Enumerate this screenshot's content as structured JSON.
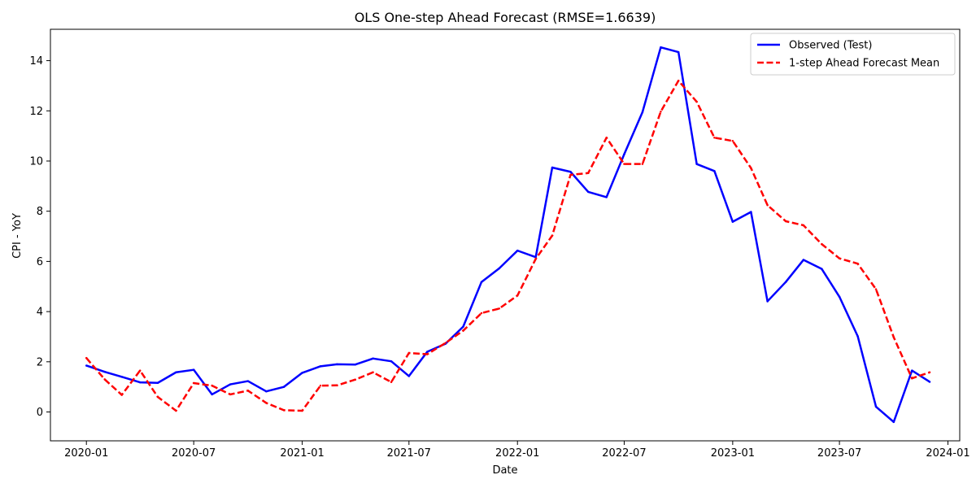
{
  "chart_data": {
    "type": "line",
    "title": "OLS One-step Ahead Forecast (RMSE=1.6639)",
    "xlabel": "Date",
    "ylabel": "CPI - YoY",
    "grid": false,
    "legend_position": "top-right",
    "xlim": [
      "2019-11-01",
      "2024-01-21"
    ],
    "ylim": [
      -1.15,
      15.25
    ],
    "x_ticks": [
      "2020-01",
      "2020-07",
      "2021-01",
      "2021-07",
      "2022-01",
      "2022-07",
      "2023-01",
      "2023-07",
      "2024-01"
    ],
    "y_ticks": [
      0,
      2,
      4,
      6,
      8,
      10,
      12,
      14
    ],
    "x": [
      "2020-01",
      "2020-02",
      "2020-03",
      "2020-04",
      "2020-05",
      "2020-06",
      "2020-07",
      "2020-08",
      "2020-09",
      "2020-10",
      "2020-11",
      "2020-12",
      "2021-01",
      "2021-02",
      "2021-03",
      "2021-04",
      "2021-05",
      "2021-06",
      "2021-07",
      "2021-08",
      "2021-09",
      "2021-10",
      "2021-11",
      "2021-12",
      "2022-01",
      "2022-02",
      "2022-03",
      "2022-04",
      "2022-05",
      "2022-06",
      "2022-07",
      "2022-08",
      "2022-09",
      "2022-10",
      "2022-11",
      "2022-12",
      "2023-01",
      "2023-02",
      "2023-03",
      "2023-04",
      "2023-05",
      "2023-06",
      "2023-07",
      "2023-08",
      "2023-09",
      "2023-10",
      "2023-11",
      "2023-12"
    ],
    "series": [
      {
        "name": "Observed (Test)",
        "color": "#0000ff",
        "style": "solid",
        "values": [
          1.85,
          1.6,
          1.4,
          1.18,
          1.16,
          1.58,
          1.68,
          0.7,
          1.1,
          1.23,
          0.82,
          1.0,
          1.56,
          1.82,
          1.9,
          1.89,
          2.13,
          2.02,
          1.43,
          2.4,
          2.72,
          3.4,
          5.18,
          5.72,
          6.43,
          6.17,
          9.74,
          9.57,
          8.77,
          8.56,
          10.27,
          11.95,
          14.53,
          14.34,
          9.88,
          9.6,
          7.58,
          7.97,
          4.41,
          5.18,
          6.06,
          5.7,
          4.59,
          3.02,
          0.21,
          -0.4,
          1.65,
          1.2
        ]
      },
      {
        "name": "1-step Ahead Forecast Mean",
        "color": "#ff0000",
        "style": "dashed",
        "values": [
          2.15,
          1.3,
          0.68,
          1.65,
          0.6,
          0.05,
          1.15,
          1.05,
          0.7,
          0.85,
          0.36,
          0.07,
          0.05,
          1.05,
          1.06,
          1.29,
          1.58,
          1.19,
          2.35,
          2.3,
          2.75,
          3.24,
          3.94,
          4.12,
          4.64,
          6.1,
          7.03,
          9.45,
          9.52,
          10.93,
          9.88,
          9.88,
          11.97,
          13.2,
          12.36,
          10.93,
          10.8,
          9.72,
          8.24,
          7.6,
          7.44,
          6.69,
          6.12,
          5.91,
          4.89,
          2.98,
          1.34,
          1.58
        ]
      }
    ]
  }
}
